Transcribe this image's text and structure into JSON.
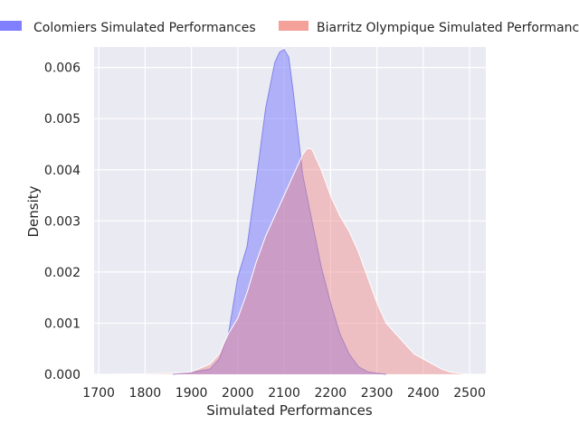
{
  "chart_data": {
    "type": "area",
    "title": "",
    "xlabel": "Simulated Performances",
    "ylabel": "Density",
    "xlim": [
      1690,
      2535
    ],
    "ylim": [
      0,
      0.0064
    ],
    "x_ticks": [
      1700,
      1800,
      1900,
      2000,
      2100,
      2200,
      2300,
      2400,
      2500
    ],
    "y_ticks": [
      0.0,
      0.001,
      0.002,
      0.003,
      0.004,
      0.005,
      0.006
    ],
    "x_tick_labels": [
      "1700",
      "1800",
      "1900",
      "2000",
      "2100",
      "2200",
      "2300",
      "2400",
      "2500"
    ],
    "y_tick_labels": [
      "0.000",
      "0.001",
      "0.002",
      "0.003",
      "0.004",
      "0.005",
      "0.006"
    ],
    "grid": true,
    "legend_position": "top",
    "series": [
      {
        "name": "Colomiers Simulated Performances",
        "color": "#8080ff",
        "x": [
          1860,
          1900,
          1940,
          1960,
          1980,
          2000,
          2020,
          2040,
          2060,
          2080,
          2090,
          2100,
          2110,
          2120,
          2140,
          2160,
          2180,
          2200,
          2220,
          2240,
          2260,
          2280,
          2300,
          2320
        ],
        "y": [
          0.0,
          4e-05,
          0.0001,
          0.0003,
          0.0008,
          0.0019,
          0.0025,
          0.0038,
          0.0052,
          0.0061,
          0.0063,
          0.00635,
          0.0062,
          0.0055,
          0.0039,
          0.003,
          0.0021,
          0.0014,
          0.0008,
          0.0004,
          0.00015,
          5e-05,
          2e-05,
          0.0
        ]
      },
      {
        "name": "Biarritz Olympique Simulated Performances",
        "color": "#f08080",
        "x": [
          1720,
          1800,
          1860,
          1900,
          1940,
          1960,
          1980,
          2000,
          2020,
          2040,
          2060,
          2080,
          2100,
          2120,
          2140,
          2150,
          2160,
          2180,
          2200,
          2220,
          2240,
          2260,
          2280,
          2300,
          2320,
          2340,
          2360,
          2380,
          2400,
          2420,
          2440,
          2460,
          2480,
          2500
        ],
        "y": [
          0.0,
          1e-05,
          2e-05,
          5e-05,
          0.0002,
          0.0004,
          0.0008,
          0.0011,
          0.0016,
          0.0022,
          0.0027,
          0.0031,
          0.0035,
          0.0039,
          0.0043,
          0.00442,
          0.0044,
          0.004,
          0.0035,
          0.0031,
          0.0028,
          0.0024,
          0.0019,
          0.0014,
          0.001,
          0.0008,
          0.0006,
          0.0004,
          0.0003,
          0.0002,
          0.0001,
          4e-05,
          2e-05,
          0.0
        ]
      }
    ]
  }
}
